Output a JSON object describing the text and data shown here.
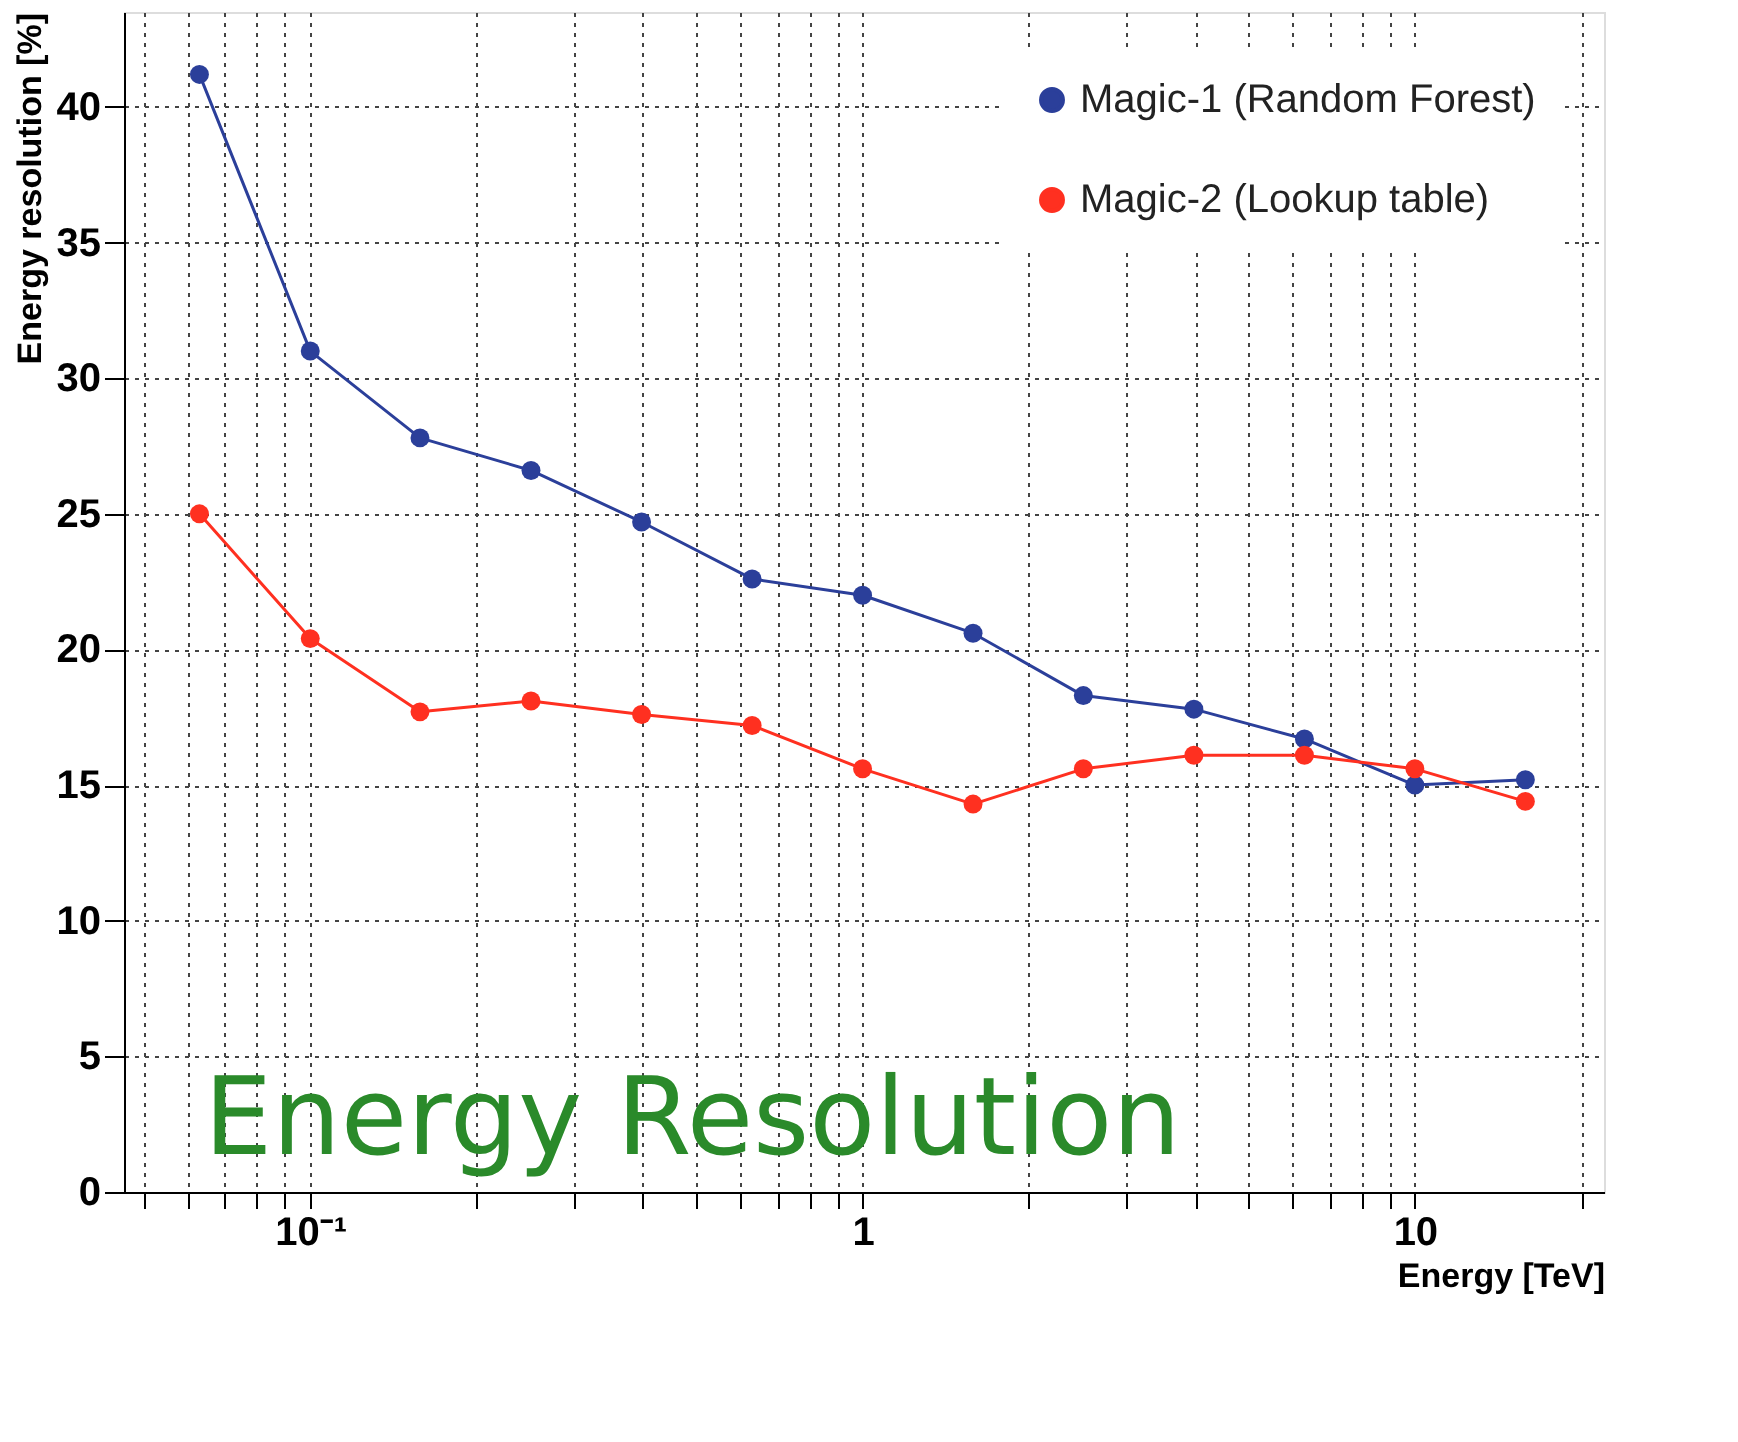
{
  "chart_data": {
    "type": "line",
    "xlabel": "Energy [TeV]",
    "ylabel": "Energy resolution [%]",
    "x": [
      0.063,
      0.1,
      0.158,
      0.251,
      0.398,
      0.631,
      1,
      1.585,
      2.51,
      3.98,
      6.31,
      10,
      15.85
    ],
    "series": [
      {
        "name": "Magic-1 (Random Forest)",
        "color": "#2b3f9a",
        "values": [
          41.2,
          31.0,
          27.8,
          26.6,
          24.7,
          22.6,
          22.0,
          20.6,
          18.3,
          17.8,
          16.7,
          15.0,
          15.2
        ]
      },
      {
        "name": "Magic-2 (Lookup table)",
        "color": "#ff3020",
        "values": [
          25.0,
          20.4,
          17.7,
          18.1,
          17.6,
          17.2,
          15.6,
          14.3,
          15.6,
          16.1,
          16.1,
          15.6,
          14.4
        ]
      }
    ],
    "log": "x",
    "xlim": [
      0.046,
      22
    ],
    "ylim": [
      0,
      43.5
    ],
    "xticks": [
      {
        "value": 0.05,
        "label": null
      },
      {
        "value": 0.06,
        "label": null
      },
      {
        "value": 0.07,
        "label": null
      },
      {
        "value": 0.08,
        "label": null
      },
      {
        "value": 0.09,
        "label": null
      },
      {
        "value": 0.1,
        "label": "10⁻¹"
      },
      {
        "value": 0.2,
        "label": null
      },
      {
        "value": 0.3,
        "label": null
      },
      {
        "value": 0.4,
        "label": null
      },
      {
        "value": 0.5,
        "label": null
      },
      {
        "value": 0.6,
        "label": null
      },
      {
        "value": 0.7,
        "label": null
      },
      {
        "value": 0.8,
        "label": null
      },
      {
        "value": 0.9,
        "label": null
      },
      1,
      {
        "value": 2,
        "label": null
      },
      {
        "value": 3,
        "label": null
      },
      {
        "value": 4,
        "label": null
      },
      {
        "value": 5,
        "label": null
      },
      {
        "value": 6,
        "label": null
      },
      {
        "value": 7,
        "label": null
      },
      {
        "value": 8,
        "label": null
      },
      {
        "value": 9,
        "label": null
      },
      10,
      {
        "value": 20,
        "label": null
      }
    ],
    "yticks": [
      0,
      5,
      10,
      15,
      20,
      25,
      30,
      35,
      40
    ],
    "grid": true,
    "legend": "top right",
    "marker": "circle",
    "line_style": "solid",
    "annotations": [
      "Energy Resolution"
    ]
  }
}
